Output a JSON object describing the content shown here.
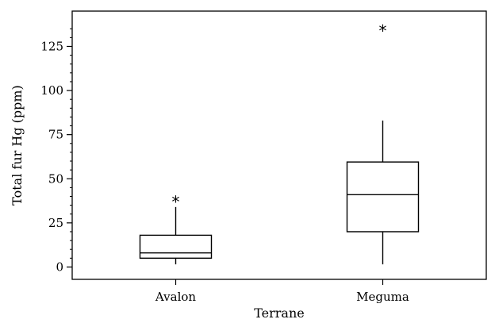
{
  "chart_data": {
    "type": "box",
    "xlabel": "Terrane",
    "ylabel": "Total fur Hg (ppm)",
    "ylim": [
      -7,
      145
    ],
    "yticks": [
      0,
      25,
      50,
      75,
      100,
      125
    ],
    "yminor_step": 5,
    "grid": false,
    "outlier_symbol": "*",
    "categories": [
      "Avalon",
      "Meguma"
    ],
    "boxes": [
      {
        "category": "Avalon",
        "whisker_low": 1.5,
        "q1": 5,
        "median": 8,
        "q3": 18,
        "whisker_high": 34,
        "outliers": [
          39
        ]
      },
      {
        "category": "Meguma",
        "whisker_low": 1.5,
        "q1": 20,
        "median": 41,
        "q3": 59.5,
        "whisker_high": 83,
        "outliers": [
          136
        ]
      }
    ]
  }
}
